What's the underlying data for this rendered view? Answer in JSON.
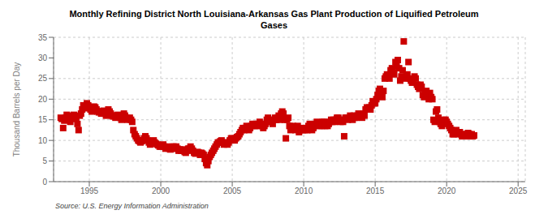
{
  "chart_data": {
    "type": "scatter",
    "title": "Monthly Refining District North Louisiana-Arkansas Gas Plant Production of Liquified Petroleum\nGases",
    "ylabel": "Thousand Barrels per Day",
    "source": "Source: U.S. Energy Information Administration",
    "color": "#cc0000",
    "marker": "square",
    "grid": true,
    "xlim": [
      1992.5,
      2025.5
    ],
    "xticks": [
      1995,
      2000,
      2005,
      2010,
      2015,
      2020,
      2025
    ],
    "ylim": [
      0,
      35
    ],
    "yticks": [
      0,
      5,
      10,
      15,
      20,
      25,
      30,
      35
    ],
    "x": [
      1993.0,
      1993.08,
      1993.17,
      1993.25,
      1993.33,
      1993.42,
      1993.5,
      1993.58,
      1993.67,
      1993.75,
      1993.83,
      1993.92,
      1994.0,
      1994.08,
      1994.17,
      1994.25,
      1994.33,
      1994.42,
      1994.5,
      1994.58,
      1994.67,
      1994.75,
      1994.83,
      1994.92,
      1995.0,
      1995.08,
      1995.17,
      1995.25,
      1995.33,
      1995.42,
      1995.5,
      1995.58,
      1995.67,
      1995.75,
      1995.83,
      1995.92,
      1996.0,
      1996.08,
      1996.17,
      1996.25,
      1996.33,
      1996.42,
      1996.5,
      1996.58,
      1996.67,
      1996.75,
      1996.83,
      1996.92,
      1997.0,
      1997.08,
      1997.17,
      1997.25,
      1997.33,
      1997.42,
      1997.5,
      1997.58,
      1997.67,
      1997.75,
      1997.83,
      1997.92,
      1998.0,
      1998.08,
      1998.17,
      1998.25,
      1998.33,
      1998.42,
      1998.5,
      1998.58,
      1998.67,
      1998.75,
      1998.83,
      1998.92,
      1999.0,
      1999.08,
      1999.17,
      1999.25,
      1999.33,
      1999.42,
      1999.5,
      1999.58,
      1999.67,
      1999.75,
      1999.83,
      1999.92,
      2000.0,
      2000.08,
      2000.17,
      2000.25,
      2000.33,
      2000.42,
      2000.5,
      2000.58,
      2000.67,
      2000.75,
      2000.83,
      2000.92,
      2001.0,
      2001.08,
      2001.17,
      2001.25,
      2001.33,
      2001.42,
      2001.5,
      2001.58,
      2001.67,
      2001.75,
      2001.83,
      2001.92,
      2002.0,
      2002.08,
      2002.17,
      2002.25,
      2002.33,
      2002.42,
      2002.5,
      2002.58,
      2002.67,
      2002.75,
      2002.83,
      2002.92,
      2003.0,
      2003.08,
      2003.17,
      2003.25,
      2003.33,
      2003.42,
      2003.5,
      2003.58,
      2003.67,
      2003.75,
      2003.83,
      2003.92,
      2004.0,
      2004.08,
      2004.17,
      2004.25,
      2004.33,
      2004.42,
      2004.5,
      2004.58,
      2004.67,
      2004.75,
      2004.83,
      2004.92,
      2005.0,
      2005.08,
      2005.17,
      2005.25,
      2005.33,
      2005.42,
      2005.5,
      2005.58,
      2005.67,
      2005.75,
      2005.83,
      2005.92,
      2006.0,
      2006.08,
      2006.17,
      2006.25,
      2006.33,
      2006.42,
      2006.5,
      2006.58,
      2006.67,
      2006.75,
      2006.83,
      2006.92,
      2007.0,
      2007.08,
      2007.17,
      2007.25,
      2007.33,
      2007.42,
      2007.5,
      2007.58,
      2007.67,
      2007.75,
      2007.83,
      2007.92,
      2008.0,
      2008.08,
      2008.17,
      2008.25,
      2008.33,
      2008.42,
      2008.5,
      2008.58,
      2008.67,
      2008.75,
      2008.83,
      2008.92,
      2009.0,
      2009.08,
      2009.17,
      2009.25,
      2009.33,
      2009.42,
      2009.5,
      2009.58,
      2009.67,
      2009.75,
      2009.83,
      2009.92,
      2010.0,
      2010.08,
      2010.17,
      2010.25,
      2010.33,
      2010.42,
      2010.5,
      2010.58,
      2010.67,
      2010.75,
      2010.83,
      2010.92,
      2011.0,
      2011.08,
      2011.17,
      2011.25,
      2011.33,
      2011.42,
      2011.5,
      2011.58,
      2011.67,
      2011.75,
      2011.83,
      2011.92,
      2012.0,
      2012.08,
      2012.17,
      2012.25,
      2012.33,
      2012.42,
      2012.5,
      2012.58,
      2012.67,
      2012.75,
      2012.83,
      2012.92,
      2013.0,
      2013.08,
      2013.17,
      2013.25,
      2013.33,
      2013.42,
      2013.5,
      2013.58,
      2013.67,
      2013.75,
      2013.83,
      2013.92,
      2014.0,
      2014.08,
      2014.17,
      2014.25,
      2014.33,
      2014.42,
      2014.5,
      2014.58,
      2014.67,
      2014.75,
      2014.83,
      2014.92,
      2015.0,
      2015.08,
      2015.17,
      2015.25,
      2015.33,
      2015.42,
      2015.5,
      2015.58,
      2015.67,
      2015.75,
      2015.83,
      2015.92,
      2016.0,
      2016.08,
      2016.17,
      2016.25,
      2016.33,
      2016.42,
      2016.5,
      2016.58,
      2016.67,
      2016.75,
      2016.83,
      2016.92,
      2017.0,
      2017.08,
      2017.17,
      2017.25,
      2017.33,
      2017.42,
      2017.5,
      2017.58,
      2017.67,
      2017.75,
      2017.83,
      2017.92,
      2018.0,
      2018.08,
      2018.17,
      2018.25,
      2018.33,
      2018.42,
      2018.5,
      2018.58,
      2018.67,
      2018.75,
      2018.83,
      2018.92,
      2019.0,
      2019.08,
      2019.17,
      2019.25,
      2019.33,
      2019.42,
      2019.5,
      2019.58,
      2019.67,
      2019.75,
      2019.83,
      2019.92,
      2020.0,
      2020.08,
      2020.17,
      2020.25,
      2020.33,
      2020.42,
      2020.5,
      2020.58,
      2020.67,
      2020.75,
      2020.83,
      2020.92,
      2021.0,
      2021.08,
      2021.17,
      2021.25,
      2021.33,
      2021.42,
      2021.5,
      2021.58,
      2021.67,
      2021.75,
      2021.83,
      2021.92
    ],
    "values": [
      15.5,
      15.2,
      13.0,
      14.8,
      15.5,
      16.2,
      15.8,
      15.0,
      14.5,
      15.5,
      16.0,
      16.2,
      15.8,
      15.2,
      14.0,
      12.5,
      16.0,
      16.5,
      17.5,
      18.5,
      17.8,
      18.0,
      19.0,
      18.5,
      18.0,
      17.5,
      17.0,
      17.5,
      18.2,
      18.0,
      17.5,
      17.0,
      16.8,
      17.0,
      16.5,
      17.0,
      17.2,
      16.5,
      16.0,
      16.8,
      17.5,
      17.0,
      16.5,
      16.0,
      15.8,
      16.0,
      15.5,
      16.0,
      16.2,
      16.0,
      15.5,
      15.0,
      16.0,
      16.5,
      16.0,
      15.5,
      15.0,
      15.2,
      15.5,
      15.0,
      14.5,
      12.5,
      11.5,
      11.0,
      10.5,
      10.0,
      9.8,
      9.5,
      9.8,
      10.0,
      10.5,
      11.0,
      10.5,
      10.0,
      9.5,
      9.0,
      9.5,
      9.8,
      10.0,
      9.5,
      9.2,
      9.0,
      8.8,
      8.5,
      8.5,
      8.8,
      9.0,
      8.5,
      8.0,
      8.5,
      8.2,
      8.0,
      7.8,
      8.0,
      8.5,
      8.5,
      8.0,
      8.5,
      8.0,
      7.5,
      7.8,
      7.5,
      7.8,
      7.5,
      7.2,
      7.0,
      7.5,
      8.0,
      8.0,
      8.5,
      8.0,
      7.5,
      7.0,
      6.8,
      7.0,
      7.2,
      7.0,
      6.5,
      7.0,
      6.8,
      6.5,
      5.5,
      4.5,
      4.0,
      5.0,
      6.0,
      6.5,
      7.0,
      7.5,
      8.0,
      8.5,
      9.0,
      9.5,
      9.5,
      9.8,
      10.0,
      9.5,
      9.0,
      9.5,
      9.2,
      9.0,
      9.5,
      10.0,
      10.5,
      10.5,
      10.2,
      10.0,
      10.5,
      10.8,
      11.0,
      11.5,
      12.0,
      12.5,
      13.0,
      12.5,
      13.0,
      13.5,
      13.0,
      12.5,
      13.0,
      13.5,
      14.0,
      13.8,
      13.5,
      14.0,
      13.5,
      14.0,
      14.5,
      14.0,
      13.5,
      13.0,
      13.5,
      14.0,
      15.0,
      15.5,
      14.5,
      15.0,
      14.5,
      14.0,
      15.0,
      15.5,
      15.0,
      15.5,
      16.0,
      15.0,
      16.5,
      17.0,
      16.5,
      15.0,
      10.5,
      15.0,
      15.5,
      13.5,
      12.5,
      13.0,
      13.5,
      13.0,
      12.5,
      13.0,
      13.5,
      12.0,
      12.5,
      13.0,
      12.5,
      12.8,
      12.5,
      13.0,
      12.5,
      13.5,
      14.0,
      13.5,
      12.5,
      13.0,
      13.5,
      14.0,
      14.5,
      14.0,
      13.5,
      14.0,
      13.5,
      14.5,
      14.5,
      13.5,
      14.0,
      13.5,
      14.0,
      14.5,
      15.0,
      14.5,
      15.0,
      14.5,
      15.0,
      15.5,
      15.5,
      15.0,
      14.5,
      15.0,
      14.5,
      11.0,
      15.5,
      15.5,
      15.0,
      15.5,
      16.0,
      15.5,
      15.0,
      16.0,
      15.5,
      15.5,
      16.0,
      16.5,
      16.0,
      16.0,
      15.5,
      16.5,
      16.0,
      17.5,
      18.0,
      17.5,
      18.0,
      17.5,
      18.5,
      19.5,
      19.0,
      19.0,
      20.0,
      21.0,
      22.0,
      22.5,
      21.0,
      20.5,
      22.0,
      25.0,
      25.5,
      26.0,
      25.5,
      25.0,
      27.0,
      27.5,
      26.5,
      26.0,
      29.0,
      28.0,
      29.5,
      27.5,
      24.5,
      25.5,
      27.0,
      34.0,
      25.0,
      25.5,
      26.0,
      29.0,
      25.0,
      24.5,
      24.0,
      24.5,
      25.5,
      25.0,
      23.5,
      23.0,
      22.5,
      23.5,
      23.0,
      21.0,
      20.5,
      21.5,
      22.0,
      21.0,
      20.0,
      21.5,
      20.5,
      20.0,
      15.0,
      14.5,
      17.0,
      17.5,
      15.5,
      14.5,
      14.0,
      13.5,
      14.5,
      15.0,
      15.0,
      14.5,
      14.0,
      13.5,
      13.0,
      12.5,
      11.5,
      11.5,
      12.0,
      12.5,
      12.0,
      11.5,
      12.0,
      11.5,
      11.0,
      11.5,
      11.2,
      11.0,
      11.5,
      11.8,
      11.5,
      11.0,
      11.5,
      11.0,
      11.2
    ]
  }
}
